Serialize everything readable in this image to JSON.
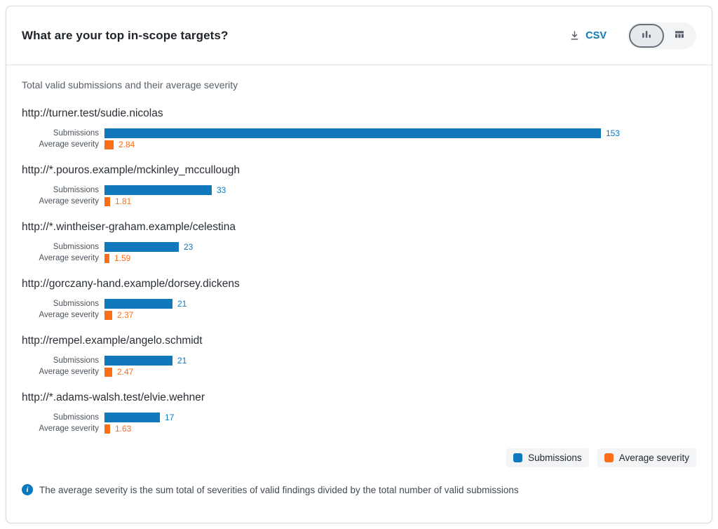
{
  "header": {
    "title": "What are your top in-scope targets?",
    "csv_label": "CSV"
  },
  "subtitle": "Total valid submissions and their average severity",
  "row_labels": {
    "submissions": "Submissions",
    "severity": "Average severity"
  },
  "colors": {
    "submissions": "#1178bd",
    "severity": "#fa6e17"
  },
  "legend": {
    "items": [
      {
        "label": "Submissions",
        "color": "#1178bd"
      },
      {
        "label": "Average severity",
        "color": "#fa6e17"
      }
    ]
  },
  "footnote": {
    "text": "The average severity is the sum total of severities of valid findings divided by the total number of valid submissions"
  },
  "chart_data": {
    "type": "bar",
    "orientation": "horizontal",
    "title": "What are your top in-scope targets?",
    "subtitle": "Total valid submissions and their average severity",
    "series_labels": [
      "Submissions",
      "Average severity"
    ],
    "axis_max": 153,
    "value_labels_shown": true,
    "legend_position": "bottom-right",
    "groups": [
      {
        "target": "http://turner.test/sudie.nicolas",
        "submissions": 153,
        "average_severity": 2.84
      },
      {
        "target": "http://*.pouros.example/mckinley_mccullough",
        "submissions": 33,
        "average_severity": 1.81
      },
      {
        "target": "http://*.wintheiser-graham.example/celestina",
        "submissions": 23,
        "average_severity": 1.59
      },
      {
        "target": "http://gorczany-hand.example/dorsey.dickens",
        "submissions": 21,
        "average_severity": 2.37
      },
      {
        "target": "http://rempel.example/angelo.schmidt",
        "submissions": 21,
        "average_severity": 2.47
      },
      {
        "target": "http://*.adams-walsh.test/elvie.wehner",
        "submissions": 17,
        "average_severity": 1.63
      }
    ]
  }
}
